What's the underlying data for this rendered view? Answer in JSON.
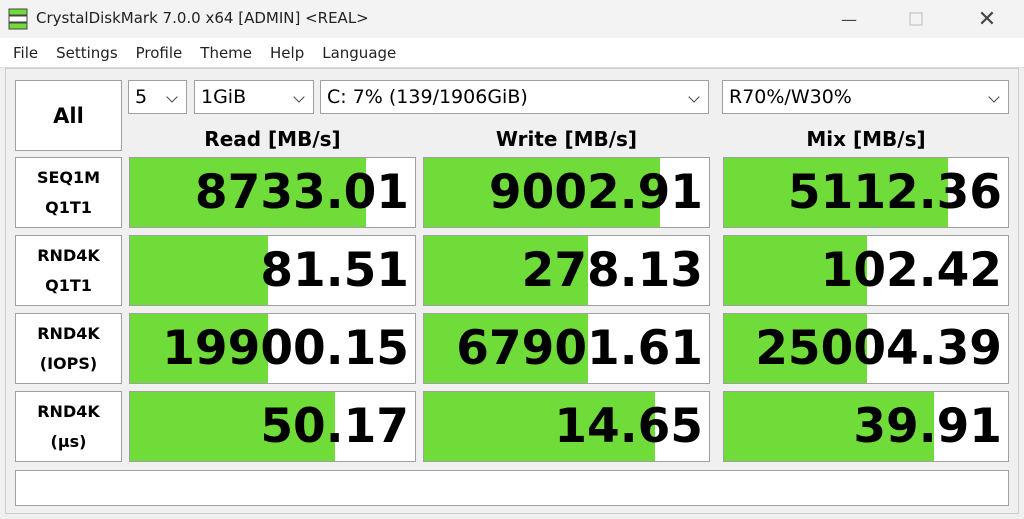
{
  "window": {
    "title": "CrystalDiskMark 7.0.0 x64 [ADMIN] <REAL>"
  },
  "menu": [
    "File",
    "Settings",
    "Profile",
    "Theme",
    "Help",
    "Language"
  ],
  "controls": {
    "all_button": "All",
    "count": "5",
    "size": "1GiB",
    "drive": "C: 7% (139/1906GiB)",
    "mix": "R70%/W30%"
  },
  "table": {
    "headers": [
      "Read [MB/s]",
      "Write [MB/s]",
      "Mix [MB/s]"
    ],
    "rows": [
      {
        "label": [
          "SEQ1M",
          "Q1T1"
        ],
        "values": [
          "8733.01",
          "9002.91",
          "5112.36"
        ]
      },
      {
        "label": [
          "RND4K",
          "Q1T1"
        ],
        "values": [
          "81.51",
          "278.13",
          "102.42"
        ]
      },
      {
        "label": [
          "RND4K",
          "(IOPS)"
        ],
        "values": [
          "19900.15",
          "67901.61",
          "25004.39"
        ]
      },
      {
        "label": [
          "RND4K",
          "(µs)"
        ],
        "values": [
          "50.17",
          "14.65",
          "39.91"
        ]
      }
    ]
  }
}
